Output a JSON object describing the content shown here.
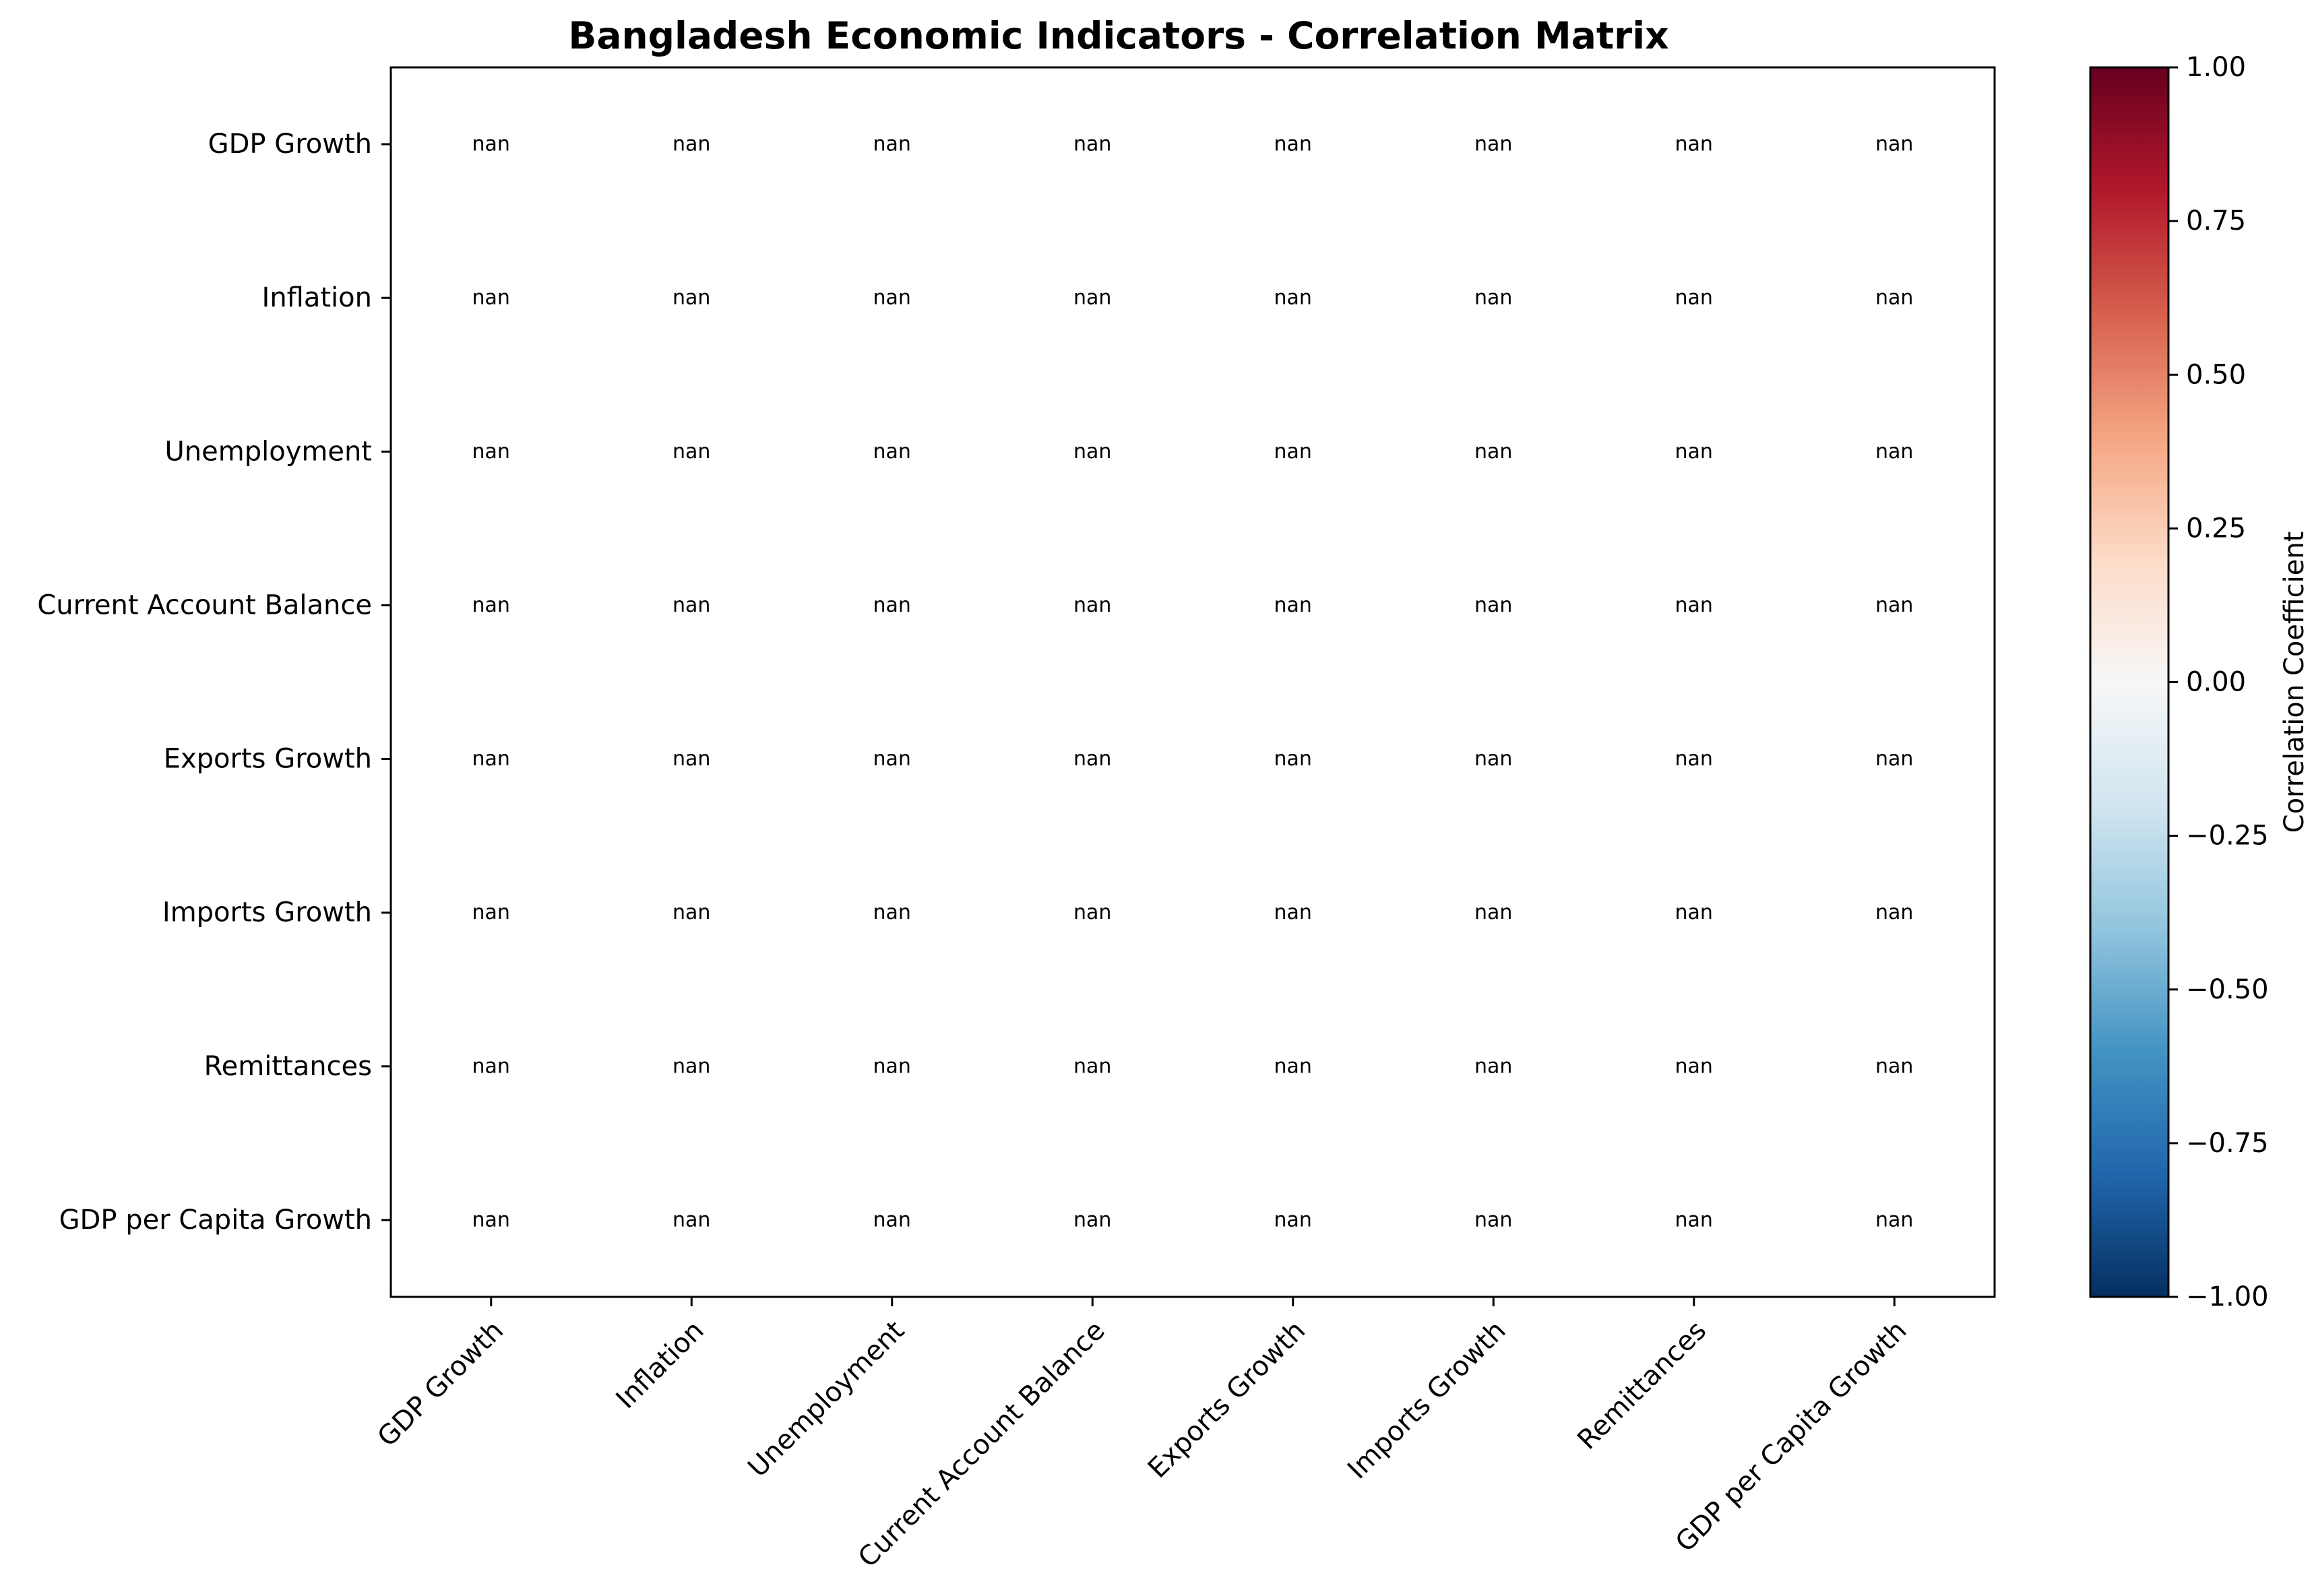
{
  "chart_data": {
    "type": "heatmap",
    "title": "Bangladesh Economic Indicators - Correlation Matrix",
    "x_labels": [
      "GDP Growth",
      "Inflation",
      "Unemployment",
      "Current Account Balance",
      "Exports Growth",
      "Imports Growth",
      "Remittances",
      "GDP per Capita Growth"
    ],
    "y_labels": [
      "GDP Growth",
      "Inflation",
      "Unemployment",
      "Current Account Balance",
      "Exports Growth",
      "Imports Growth",
      "Remittances",
      "GDP per Capita Growth"
    ],
    "values": [
      [
        "nan",
        "nan",
        "nan",
        "nan",
        "nan",
        "nan",
        "nan",
        "nan"
      ],
      [
        "nan",
        "nan",
        "nan",
        "nan",
        "nan",
        "nan",
        "nan",
        "nan"
      ],
      [
        "nan",
        "nan",
        "nan",
        "nan",
        "nan",
        "nan",
        "nan",
        "nan"
      ],
      [
        "nan",
        "nan",
        "nan",
        "nan",
        "nan",
        "nan",
        "nan",
        "nan"
      ],
      [
        "nan",
        "nan",
        "nan",
        "nan",
        "nan",
        "nan",
        "nan",
        "nan"
      ],
      [
        "nan",
        "nan",
        "nan",
        "nan",
        "nan",
        "nan",
        "nan",
        "nan"
      ],
      [
        "nan",
        "nan",
        "nan",
        "nan",
        "nan",
        "nan",
        "nan",
        "nan"
      ],
      [
        "nan",
        "nan",
        "nan",
        "nan",
        "nan",
        "nan",
        "nan",
        "nan"
      ]
    ],
    "colorbar": {
      "label": "Correlation Coefficient",
      "range": [
        -1.0,
        1.0
      ],
      "ticks": [
        "1.00",
        "0.75",
        "0.50",
        "0.25",
        "0.00",
        "−0.25",
        "−0.50",
        "−0.75",
        "−1.00"
      ],
      "colormap": "RdBu_r",
      "colors": [
        "#67001f",
        "#b2182b",
        "#d6604d",
        "#f4a582",
        "#fddbc7",
        "#f7f7f7",
        "#d1e5f0",
        "#92c5de",
        "#4393c3",
        "#2166ac",
        "#053061"
      ]
    },
    "grid": false
  }
}
